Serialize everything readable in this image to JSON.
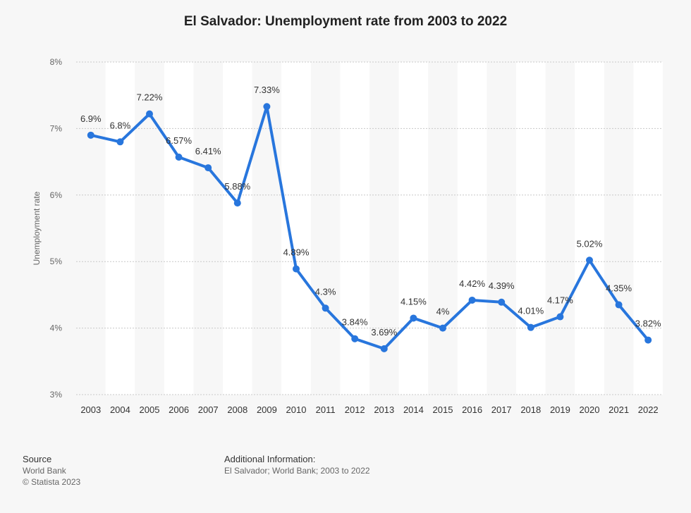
{
  "chart_data": {
    "type": "line",
    "title": "El Salvador: Unemployment rate from 2003 to 2022",
    "xlabel": "",
    "ylabel": "Unemployment rate",
    "ylim": [
      3,
      8
    ],
    "yticks": [
      "3%",
      "4%",
      "5%",
      "6%",
      "7%",
      "8%"
    ],
    "grid": true,
    "categories": [
      "2003",
      "2004",
      "2005",
      "2006",
      "2007",
      "2008",
      "2009",
      "2010",
      "2011",
      "2012",
      "2013",
      "2014",
      "2015",
      "2016",
      "2017",
      "2018",
      "2019",
      "2020",
      "2021",
      "2022"
    ],
    "series": [
      {
        "values": [
          6.9,
          6.8,
          7.22,
          6.57,
          6.41,
          5.88,
          7.33,
          4.89,
          4.3,
          3.84,
          3.69,
          4.15,
          4.0,
          4.42,
          4.39,
          4.01,
          4.17,
          5.02,
          4.35,
          3.82
        ],
        "labels": [
          "6.9%",
          "6.8%",
          "7.22%",
          "6.57%",
          "6.41%",
          "5.88%",
          "7.33%",
          "4.89%",
          "4.3%",
          "3.84%",
          "3.69%",
          "4.15%",
          "4%",
          "4.42%",
          "4.39%",
          "4.01%",
          "4.17%",
          "5.02%",
          "4.35%",
          "3.82%"
        ],
        "color": "#2876dd"
      }
    ]
  },
  "footer": {
    "source_heading": "Source",
    "source_line1": "World Bank",
    "source_line2": "© Statista 2023",
    "info_heading": "Additional Information:",
    "info_text": "El Salvador; World Bank; 2003 to 2022"
  }
}
